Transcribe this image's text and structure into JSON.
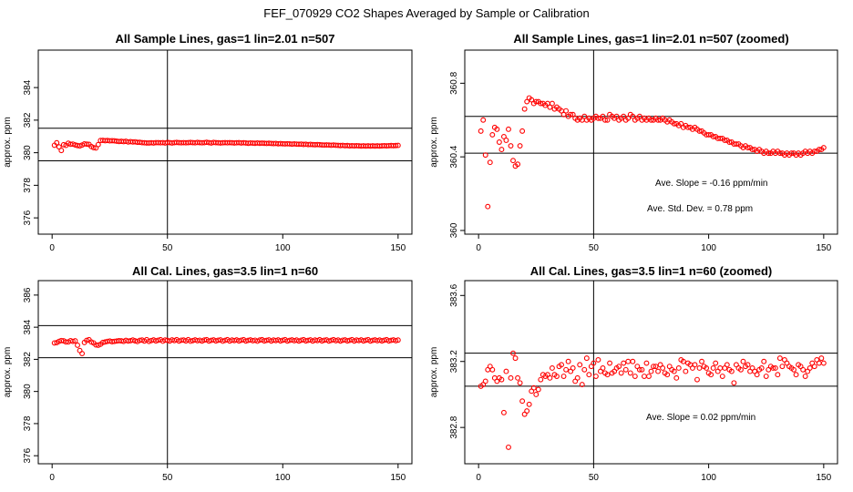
{
  "suptitle": "FEF_070929  CO2 Shapes Averaged by Sample or Calibration",
  "chart_data": [
    {
      "type": "scatter",
      "title": "All Sample Lines, gas=1 lin=2.01 n=507",
      "xlabel": "",
      "ylabel": "approx. ppm",
      "xlim": [
        -6,
        156
      ],
      "ylim": [
        375,
        386.3
      ],
      "xticks": [
        0,
        50,
        100,
        150
      ],
      "yticks": [
        376,
        378,
        380,
        382,
        384
      ],
      "hlines": [
        379.5,
        381.5
      ],
      "vline": 50,
      "annotations": [],
      "x": [
        1,
        2,
        3,
        4,
        5,
        6,
        7,
        8,
        9,
        10,
        11,
        12,
        13,
        14,
        15,
        16,
        17,
        18,
        19,
        20,
        21,
        22,
        23,
        24,
        25,
        26,
        27,
        28,
        29,
        30,
        31,
        32,
        33,
        34,
        35,
        36,
        37,
        38,
        39,
        40,
        41,
        42,
        43,
        44,
        45,
        46,
        47,
        48,
        49,
        50,
        51,
        52,
        53,
        54,
        55,
        56,
        57,
        58,
        59,
        60,
        61,
        62,
        63,
        64,
        65,
        66,
        67,
        68,
        69,
        70,
        71,
        72,
        73,
        74,
        75,
        76,
        77,
        78,
        79,
        80,
        81,
        82,
        83,
        84,
        85,
        86,
        87,
        88,
        89,
        90,
        91,
        92,
        93,
        94,
        95,
        96,
        97,
        98,
        99,
        100,
        101,
        102,
        103,
        104,
        105,
        106,
        107,
        108,
        109,
        110,
        111,
        112,
        113,
        114,
        115,
        116,
        117,
        118,
        119,
        120,
        121,
        122,
        123,
        124,
        125,
        126,
        127,
        128,
        129,
        130,
        131,
        132,
        133,
        134,
        135,
        136,
        137,
        138,
        139,
        140,
        141,
        142,
        143,
        144,
        145,
        146,
        147,
        148,
        149,
        150
      ],
      "y": [
        380.46,
        380.61,
        380.36,
        380.14,
        380.49,
        380.45,
        380.58,
        380.52,
        380.53,
        380.48,
        380.44,
        380.42,
        380.47,
        380.54,
        380.53,
        380.51,
        380.38,
        380.31,
        380.29,
        380.5,
        380.75,
        380.76,
        380.74,
        380.75,
        380.73,
        380.74,
        380.73,
        380.71,
        380.69,
        380.7,
        380.68,
        380.7,
        380.66,
        380.68,
        380.66,
        380.67,
        380.64,
        380.64,
        380.62,
        380.61,
        380.6,
        380.6,
        380.61,
        380.6,
        380.62,
        380.62,
        380.61,
        380.62,
        380.6,
        380.63,
        380.62,
        380.6,
        380.62,
        380.63,
        380.62,
        380.61,
        380.62,
        380.61,
        380.62,
        380.63,
        380.62,
        380.61,
        380.63,
        380.62,
        380.61,
        380.62,
        380.64,
        380.62,
        380.6,
        380.63,
        380.62,
        380.61,
        380.6,
        380.61,
        380.62,
        380.61,
        380.62,
        380.61,
        380.6,
        380.61,
        380.62,
        380.6,
        380.61,
        380.6,
        380.58,
        380.6,
        380.59,
        380.58,
        380.6,
        380.58,
        380.59,
        380.58,
        380.57,
        380.58,
        380.57,
        380.56,
        380.57,
        380.55,
        380.56,
        380.55,
        380.54,
        380.55,
        380.54,
        380.53,
        380.54,
        380.53,
        380.52,
        380.53,
        380.51,
        380.52,
        380.5,
        380.51,
        380.5,
        380.49,
        380.5,
        380.49,
        380.48,
        380.47,
        380.48,
        380.47,
        380.46,
        380.47,
        380.46,
        380.45,
        380.44,
        380.45,
        380.43,
        380.44,
        380.42,
        380.43,
        380.42,
        380.43,
        380.42,
        380.41,
        380.42,
        380.41,
        380.42,
        380.41,
        380.42,
        380.41,
        380.42,
        380.41,
        380.42,
        380.43,
        380.42,
        380.43,
        380.44,
        380.43,
        380.44,
        380.45
      ]
    },
    {
      "type": "scatter",
      "title": "All Sample Lines, gas=1 lin=2.01 n=507 (zoomed)",
      "xlabel": "",
      "ylabel": "approx. ppm",
      "xlim": [
        -6,
        156
      ],
      "ylim": [
        359.98,
        360.98
      ],
      "xticks": [
        0,
        50,
        100,
        150
      ],
      "yticks": [
        360.0,
        360.4,
        360.8
      ],
      "hlines": [
        360.42,
        360.62
      ],
      "vline": 50,
      "annotations": [
        "Ave. Slope =  -0.16  ppm/min",
        "Ave. Std. Dev. =  0.78  ppm"
      ],
      "x": [
        1,
        2,
        3,
        4,
        5,
        6,
        7,
        8,
        9,
        10,
        11,
        12,
        13,
        14,
        15,
        16,
        17,
        18,
        19,
        20,
        21,
        22,
        23,
        24,
        25,
        26,
        27,
        28,
        29,
        30,
        31,
        32,
        33,
        34,
        35,
        36,
        37,
        38,
        39,
        40,
        41,
        42,
        43,
        44,
        45,
        46,
        47,
        48,
        49,
        50,
        51,
        52,
        53,
        54,
        55,
        56,
        57,
        58,
        59,
        60,
        61,
        62,
        63,
        64,
        65,
        66,
        67,
        68,
        69,
        70,
        71,
        72,
        73,
        74,
        75,
        76,
        77,
        78,
        79,
        80,
        81,
        82,
        83,
        84,
        85,
        86,
        87,
        88,
        89,
        90,
        91,
        92,
        93,
        94,
        95,
        96,
        97,
        98,
        99,
        100,
        101,
        102,
        103,
        104,
        105,
        106,
        107,
        108,
        109,
        110,
        111,
        112,
        113,
        114,
        115,
        116,
        117,
        118,
        119,
        120,
        121,
        122,
        123,
        124,
        125,
        126,
        127,
        128,
        129,
        130,
        131,
        132,
        133,
        134,
        135,
        136,
        137,
        138,
        139,
        140,
        141,
        142,
        143,
        144,
        145,
        146,
        147,
        148,
        149,
        150
      ],
      "y": [
        360.54,
        360.6,
        360.41,
        360.13,
        360.37,
        360.52,
        360.56,
        360.55,
        360.48,
        360.44,
        360.51,
        360.49,
        360.55,
        360.46,
        360.38,
        360.35,
        360.36,
        360.46,
        360.54,
        360.66,
        360.7,
        360.72,
        360.71,
        360.69,
        360.7,
        360.7,
        360.69,
        360.69,
        360.68,
        360.69,
        360.67,
        360.69,
        360.66,
        360.67,
        360.66,
        360.65,
        360.63,
        360.65,
        360.62,
        360.63,
        360.63,
        360.61,
        360.6,
        360.61,
        360.6,
        360.62,
        360.6,
        360.61,
        360.6,
        360.61,
        360.62,
        360.61,
        360.61,
        360.62,
        360.6,
        360.6,
        360.63,
        360.62,
        360.61,
        360.62,
        360.6,
        360.61,
        360.62,
        360.6,
        360.61,
        360.63,
        360.62,
        360.6,
        360.61,
        360.62,
        360.6,
        360.61,
        360.6,
        360.61,
        360.6,
        360.6,
        360.61,
        360.6,
        360.6,
        360.61,
        360.6,
        360.59,
        360.6,
        360.59,
        360.58,
        360.58,
        360.57,
        360.58,
        360.56,
        360.57,
        360.56,
        360.56,
        360.55,
        360.56,
        360.55,
        360.54,
        360.54,
        360.53,
        360.52,
        360.52,
        360.52,
        360.51,
        360.51,
        360.5,
        360.5,
        360.5,
        360.49,
        360.49,
        360.48,
        360.48,
        360.47,
        360.47,
        360.47,
        360.46,
        360.45,
        360.46,
        360.45,
        360.45,
        360.44,
        360.44,
        360.43,
        360.44,
        360.43,
        360.42,
        360.43,
        360.42,
        360.42,
        360.43,
        360.42,
        360.43,
        360.42,
        360.42,
        360.41,
        360.42,
        360.41,
        360.42,
        360.42,
        360.41,
        360.42,
        360.41,
        360.42,
        360.43,
        360.42,
        360.43,
        360.42,
        360.43,
        360.43,
        360.44,
        360.44,
        360.45
      ]
    },
    {
      "type": "scatter",
      "title": "All Cal. Lines, gas=3.5 lin=1 n=60",
      "xlabel": "",
      "ylabel": "approx. ppm",
      "xlim": [
        -6,
        156
      ],
      "ylim": [
        375.5,
        386.9
      ],
      "xticks": [
        0,
        50,
        100,
        150
      ],
      "yticks": [
        376,
        378,
        380,
        382,
        384,
        386
      ],
      "hlines": [
        382.1,
        384.1
      ],
      "vline": 50,
      "annotations": [],
      "x": [
        1,
        2,
        3,
        4,
        5,
        6,
        7,
        8,
        9,
        10,
        11,
        12,
        13,
        14,
        15,
        16,
        17,
        18,
        19,
        20,
        21,
        22,
        23,
        24,
        25,
        26,
        27,
        28,
        29,
        30,
        31,
        32,
        33,
        34,
        35,
        36,
        37,
        38,
        39,
        40,
        41,
        42,
        43,
        44,
        45,
        46,
        47,
        48,
        49,
        50,
        51,
        52,
        53,
        54,
        55,
        56,
        57,
        58,
        59,
        60,
        61,
        62,
        63,
        64,
        65,
        66,
        67,
        68,
        69,
        70,
        71,
        72,
        73,
        74,
        75,
        76,
        77,
        78,
        79,
        80,
        81,
        82,
        83,
        84,
        85,
        86,
        87,
        88,
        89,
        90,
        91,
        92,
        93,
        94,
        95,
        96,
        97,
        98,
        99,
        100,
        101,
        102,
        103,
        104,
        105,
        106,
        107,
        108,
        109,
        110,
        111,
        112,
        113,
        114,
        115,
        116,
        117,
        118,
        119,
        120,
        121,
        122,
        123,
        124,
        125,
        126,
        127,
        128,
        129,
        130,
        131,
        132,
        133,
        134,
        135,
        136,
        137,
        138,
        139,
        140,
        141,
        142,
        143,
        144,
        145,
        146,
        147,
        148,
        149,
        150
      ],
      "y": [
        383.02,
        383.04,
        383.12,
        383.17,
        383.15,
        383.08,
        383.08,
        383.16,
        383.12,
        383.15,
        382.88,
        382.55,
        382.36,
        383.05,
        383.18,
        383.22,
        383.08,
        383.02,
        382.9,
        382.88,
        382.94,
        383.05,
        383.08,
        383.12,
        383.14,
        383.1,
        383.12,
        383.14,
        383.16,
        383.15,
        383.12,
        383.18,
        383.14,
        383.16,
        383.2,
        383.15,
        383.11,
        383.18,
        383.2,
        383.14,
        383.22,
        383.12,
        383.17,
        383.21,
        383.15,
        383.19,
        383.22,
        383.13,
        383.2,
        383.18,
        383.14,
        383.21,
        383.17,
        383.22,
        383.14,
        383.19,
        383.2,
        383.15,
        383.22,
        383.13,
        383.17,
        383.21,
        383.16,
        383.19,
        383.14,
        383.2,
        383.22,
        383.14,
        383.18,
        383.21,
        383.15,
        383.19,
        383.21,
        383.13,
        383.18,
        383.22,
        383.14,
        383.2,
        383.17,
        383.21,
        383.15,
        383.19,
        383.22,
        383.14,
        383.18,
        383.21,
        383.16,
        383.19,
        383.13,
        383.2,
        383.22,
        383.15,
        383.18,
        383.21,
        383.14,
        383.2,
        383.17,
        383.21,
        383.15,
        383.19,
        383.22,
        383.14,
        383.18,
        383.21,
        383.16,
        383.2,
        383.14,
        383.19,
        383.22,
        383.15,
        383.18,
        383.21,
        383.14,
        383.2,
        383.17,
        383.22,
        383.15,
        383.19,
        383.21,
        383.14,
        383.18,
        383.22,
        383.16,
        383.2,
        383.14,
        383.19,
        383.21,
        383.15,
        383.18,
        383.22,
        383.14,
        383.2,
        383.17,
        383.21,
        383.15,
        383.19,
        383.22,
        383.14,
        383.18,
        383.21,
        383.16,
        383.2,
        383.15,
        383.19,
        383.22,
        383.15,
        383.18,
        383.21,
        383.16,
        383.2
      ]
    },
    {
      "type": "scatter",
      "title": "All Cal. Lines, gas=3.5 lin=1 n=60 (zoomed)",
      "xlabel": "",
      "ylabel": "approx. ppm",
      "xlim": [
        -6,
        156
      ],
      "ylim": [
        382.58,
        383.69
      ],
      "xticks": [
        0,
        50,
        100,
        150
      ],
      "yticks": [
        382.8,
        383.2,
        383.6
      ],
      "hlines": [
        383.05,
        383.25
      ],
      "vline": 50,
      "annotations": [
        "Ave. Slope =  0.02  ppm/min"
      ],
      "x": [
        1,
        2,
        3,
        4,
        5,
        6,
        7,
        8,
        9,
        10,
        11,
        12,
        13,
        14,
        15,
        16,
        17,
        18,
        19,
        20,
        21,
        22,
        23,
        24,
        25,
        26,
        27,
        28,
        29,
        30,
        31,
        32,
        33,
        34,
        35,
        36,
        37,
        38,
        39,
        40,
        41,
        42,
        43,
        44,
        45,
        46,
        47,
        48,
        49,
        50,
        51,
        52,
        53,
        54,
        55,
        56,
        57,
        58,
        59,
        60,
        61,
        62,
        63,
        64,
        65,
        66,
        67,
        68,
        69,
        70,
        71,
        72,
        73,
        74,
        75,
        76,
        77,
        78,
        79,
        80,
        81,
        82,
        83,
        84,
        85,
        86,
        87,
        88,
        89,
        90,
        91,
        92,
        93,
        94,
        95,
        96,
        97,
        98,
        99,
        100,
        101,
        102,
        103,
        104,
        105,
        106,
        107,
        108,
        109,
        110,
        111,
        112,
        113,
        114,
        115,
        116,
        117,
        118,
        119,
        120,
        121,
        122,
        123,
        124,
        125,
        126,
        127,
        128,
        129,
        130,
        131,
        132,
        133,
        134,
        135,
        136,
        137,
        138,
        139,
        140,
        141,
        142,
        143,
        144,
        145,
        146,
        147,
        148,
        149,
        150
      ],
      "y": [
        383.05,
        383.06,
        383.08,
        383.15,
        383.17,
        383.15,
        383.1,
        383.08,
        383.1,
        383.09,
        382.89,
        383.14,
        382.68,
        383.1,
        383.25,
        383.22,
        383.1,
        383.07,
        382.96,
        382.88,
        382.9,
        382.94,
        383.02,
        383.04,
        383.0,
        383.03,
        383.09,
        383.12,
        383.11,
        383.12,
        383.1,
        383.16,
        383.12,
        383.11,
        383.17,
        383.18,
        383.11,
        383.15,
        383.2,
        383.14,
        383.16,
        383.08,
        383.1,
        383.18,
        383.06,
        383.15,
        383.22,
        383.12,
        383.17,
        383.19,
        383.11,
        383.21,
        383.14,
        383.16,
        383.13,
        383.12,
        383.19,
        383.13,
        383.14,
        383.16,
        383.17,
        383.13,
        383.19,
        383.15,
        383.2,
        383.13,
        383.2,
        383.11,
        383.17,
        383.15,
        383.15,
        383.11,
        383.19,
        383.11,
        383.14,
        383.17,
        383.17,
        383.14,
        383.18,
        383.16,
        383.13,
        383.12,
        383.17,
        383.15,
        383.14,
        383.1,
        383.16,
        383.21,
        383.2,
        383.14,
        383.19,
        383.18,
        383.16,
        383.18,
        383.09,
        383.16,
        383.2,
        383.17,
        383.16,
        383.13,
        383.12,
        383.16,
        383.19,
        383.14,
        383.16,
        383.11,
        383.16,
        383.18,
        383.15,
        383.14,
        383.07,
        383.18,
        383.16,
        383.15,
        383.2,
        383.17,
        383.18,
        383.14,
        383.16,
        383.14,
        383.12,
        383.15,
        383.16,
        383.2,
        383.11,
        383.15,
        383.17,
        383.16,
        383.16,
        383.12,
        383.22,
        383.17,
        383.21,
        383.19,
        383.17,
        383.16,
        383.15,
        383.12,
        383.18,
        383.17,
        383.15,
        383.11,
        383.14,
        383.16,
        383.19,
        383.17,
        383.21,
        383.19,
        383.22,
        383.19
      ]
    }
  ]
}
